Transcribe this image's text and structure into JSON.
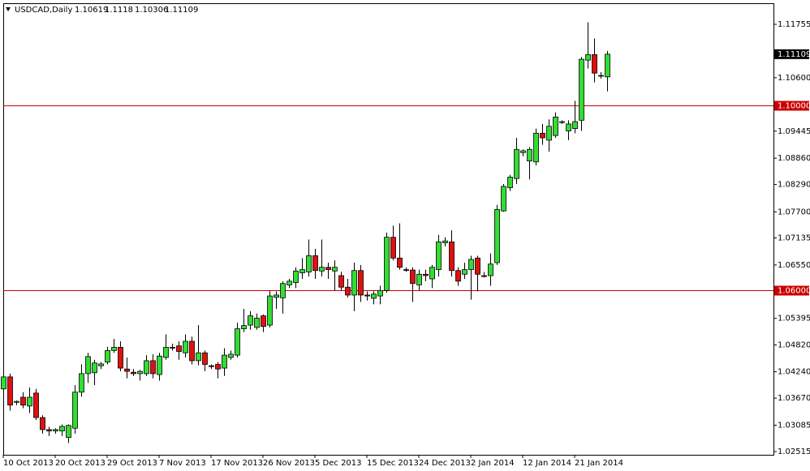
{
  "chart_data": {
    "type": "candlestick",
    "title": "USDCAD,Daily",
    "categories": [
      "10 Oct 2013",
      null,
      null,
      null,
      null,
      null,
      null,
      null,
      "20 Oct 2013",
      null,
      null,
      null,
      null,
      null,
      null,
      null,
      "29 Oct 2013",
      null,
      null,
      null,
      null,
      null,
      null,
      null,
      "7 Nov 2013",
      null,
      null,
      null,
      null,
      null,
      null,
      null,
      "17 Nov 2013",
      null,
      null,
      null,
      null,
      null,
      null,
      null,
      "26 Nov 2013",
      null,
      null,
      null,
      null,
      null,
      null,
      null,
      "5 Dec 2013",
      null,
      null,
      null,
      null,
      null,
      null,
      null,
      "15 Dec 2013",
      null,
      null,
      null,
      null,
      null,
      null,
      null,
      "24 Dec 2013",
      null,
      null,
      null,
      null,
      null,
      null,
      null,
      "2 Jan 2014",
      null,
      null,
      null,
      null,
      null,
      null,
      null,
      "12 Jan 2014",
      null,
      null,
      null,
      null,
      null,
      null,
      null,
      "21 Jan 2014",
      null,
      null,
      null,
      null,
      null
    ],
    "open": [
      1.0387,
      1.0413,
      1.0358,
      1.0369,
      1.035,
      1.0378,
      1.0325,
      1.0299,
      1.0296,
      1.0296,
      1.0282,
      1.0302,
      1.038,
      1.042,
      1.0422,
      1.0437,
      1.0445,
      1.047,
      1.0477,
      1.043,
      1.0423,
      1.042,
      1.042,
      1.0448,
      1.0418,
      1.0455,
      1.0477,
      1.048,
      1.0465,
      1.049,
      1.0448,
      1.0465,
      1.0437,
      1.044,
      1.0432,
      1.0455,
      1.046,
      1.0517,
      1.0525,
      1.052,
      1.0545,
      1.0525,
      1.0585,
      1.0584,
      1.0612,
      1.0617,
      1.0638,
      1.064,
      1.0675,
      1.0642,
      1.065,
      1.0642,
      1.0632,
      1.0607,
      1.059,
      1.0643,
      1.059,
      1.0583,
      1.0588,
      1.06,
      1.0715,
      1.067,
      1.0645,
      1.0644,
      1.0612,
      1.0635,
      1.0625,
      1.0645,
      1.0703,
      1.0705,
      1.0643,
      1.0635,
      1.0645,
      1.067,
      1.0632,
      1.0632,
      1.066,
      1.0772,
      1.0822,
      1.0842,
      1.0898,
      1.088,
      1.0878,
      1.094,
      1.0925,
      1.0935,
      1.0963,
      1.0945,
      1.095,
      1.0968,
      1.1098,
      1.111,
      1.1065,
      1.10619
    ],
    "high": [
      1.0422,
      1.042,
      1.0362,
      1.038,
      1.039,
      1.0387,
      1.033,
      1.0305,
      1.0302,
      1.031,
      1.031,
      1.0395,
      1.044,
      1.0465,
      1.045,
      1.0445,
      1.0478,
      1.0495,
      1.049,
      1.0455,
      1.043,
      1.0428,
      1.046,
      1.0462,
      1.0465,
      1.0505,
      1.0485,
      1.049,
      1.0505,
      1.05,
      1.0525,
      1.047,
      1.044,
      1.0445,
      1.0475,
      1.047,
      1.053,
      1.056,
      1.0555,
      1.055,
      1.0548,
      1.06,
      1.0598,
      1.062,
      1.0625,
      1.065,
      1.067,
      1.071,
      1.069,
      1.071,
      1.066,
      1.0665,
      1.064,
      1.0625,
      1.066,
      1.0655,
      1.0598,
      1.0598,
      1.061,
      1.0725,
      1.074,
      1.0745,
      1.065,
      1.065,
      1.0645,
      1.0645,
      1.0655,
      1.072,
      1.0715,
      1.073,
      1.065,
      1.066,
      1.0675,
      1.0675,
      1.064,
      1.068,
      1.0785,
      1.083,
      1.085,
      1.093,
      1.0905,
      1.091,
      1.095,
      1.096,
      1.097,
      1.0985,
      1.0968,
      1.0968,
      1.101,
      1.1105,
      1.118,
      1.1145,
      1.1072,
      1.1118
    ],
    "low": [
      1.038,
      1.034,
      1.0352,
      1.0345,
      1.0335,
      1.032,
      1.029,
      1.0285,
      1.029,
      1.0285,
      1.027,
      1.029,
      1.037,
      1.04,
      1.0395,
      1.043,
      1.044,
      1.0465,
      1.0425,
      1.041,
      1.0415,
      1.0405,
      1.0415,
      1.041,
      1.0405,
      1.045,
      1.047,
      1.045,
      1.0455,
      1.044,
      1.0438,
      1.0425,
      1.043,
      1.041,
      1.0415,
      1.045,
      1.0455,
      1.051,
      1.0515,
      1.0515,
      1.051,
      1.052,
      1.056,
      1.055,
      1.0605,
      1.0605,
      1.0625,
      1.063,
      1.0625,
      1.063,
      1.0625,
      1.06,
      1.06,
      1.0585,
      1.0555,
      1.0575,
      1.0578,
      1.057,
      1.057,
      1.0595,
      1.0665,
      1.0645,
      1.064,
      1.0575,
      1.06,
      1.062,
      1.0605,
      1.063,
      1.0695,
      1.063,
      1.061,
      1.0625,
      1.058,
      1.0598,
      1.0628,
      1.061,
      1.0655,
      1.077,
      1.0815,
      1.083,
      1.089,
      1.084,
      1.087,
      1.0915,
      1.09,
      1.093,
      1.096,
      1.0925,
      1.094,
      1.0945,
      1.108,
      1.105,
      1.1058,
      1.10306
    ],
    "close": [
      1.0413,
      1.0352,
      1.036,
      1.0352,
      1.0369,
      1.0325,
      1.0299,
      1.0296,
      1.0299,
      1.0306,
      1.0308,
      1.038,
      1.042,
      1.0457,
      1.0443,
      1.0441,
      1.047,
      1.0477,
      1.0432,
      1.0425,
      1.042,
      1.0425,
      1.0448,
      1.042,
      1.0458,
      1.0477,
      1.0476,
      1.0468,
      1.049,
      1.0448,
      1.0465,
      1.044,
      1.0436,
      1.043,
      1.046,
      1.0462,
      1.0517,
      1.0524,
      1.0545,
      1.054,
      1.0522,
      1.0588,
      1.059,
      1.0615,
      1.062,
      1.0642,
      1.0645,
      1.0675,
      1.0643,
      1.065,
      1.0645,
      1.065,
      1.0607,
      1.059,
      1.0643,
      1.059,
      1.0588,
      1.0592,
      1.06,
      1.0715,
      1.067,
      1.065,
      1.0644,
      1.0615,
      1.0635,
      1.0632,
      1.065,
      1.0705,
      1.0707,
      1.0643,
      1.062,
      1.0645,
      1.0667,
      1.0635,
      1.063,
      1.0657,
      1.0775,
      1.0825,
      1.0845,
      1.0905,
      1.0902,
      1.0905,
      1.094,
      1.093,
      1.0955,
      1.0975,
      1.0965,
      1.096,
      1.0965,
      1.11,
      1.111,
      1.107,
      1.1065,
      1.11109
    ],
    "up_color": "#33dd33",
    "down_color": "#e01010",
    "ylim": [
      1.02445,
      1.12211
    ],
    "yticks": [
      1.11755,
      {
        "value": 1.106,
        "label": "1.10600"
      },
      1.09445,
      {
        "value": 1.0886,
        "label": "1.08860"
      },
      {
        "value": 1.0829,
        "label": "1.08290"
      },
      {
        "value": 1.077,
        "label": "1.07700"
      },
      1.07135,
      {
        "value": 1.0655,
        "label": "1.06550"
      },
      1.05395,
      {
        "value": 1.0482,
        "label": "1.04820"
      },
      {
        "value": 1.0424,
        "label": "1.04240"
      },
      {
        "value": 1.0367,
        "label": "1.03670"
      },
      1.03085,
      1.02515
    ],
    "hlines": [
      {
        "value": 1.1,
        "label": "1.10000"
      },
      {
        "value": 1.06,
        "label": "1.06000"
      }
    ],
    "hline_color": "#cc0000"
  }
}
